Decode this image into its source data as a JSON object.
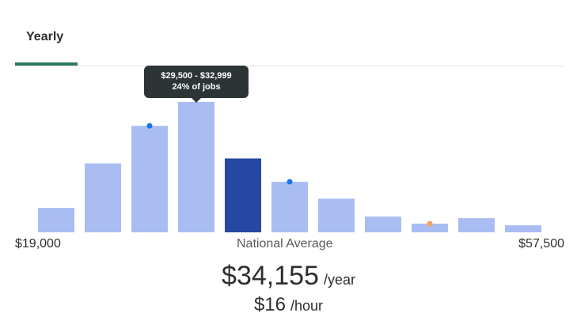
{
  "tabs": [
    {
      "label": "Yearly",
      "active": true
    }
  ],
  "tooltip": {
    "range": "$29,500 - $32,999",
    "share": "24% of jobs"
  },
  "axis": {
    "min_label": "$19,000",
    "mid_label": "National Average",
    "max_label": "$57,500"
  },
  "salary": {
    "yearly_amount": "$34,155",
    "yearly_unit": "/year",
    "hourly_amount": "$16",
    "hourly_unit": "/hour"
  },
  "colors": {
    "bar": "#a9bdf3",
    "bar_highlight": "#2648a3",
    "marker_blue": "#1a73e8",
    "marker_orange": "#f4a261",
    "tab_accent": "#2c7a62"
  },
  "chart_data": {
    "type": "bar",
    "x_range": [
      19000,
      57500
    ],
    "values": [
      4.5,
      12.7,
      19.6,
      24.0,
      13.6,
      9.3,
      6.2,
      2.9,
      1.6,
      2.6,
      1.3
    ],
    "y_unit": "% of jobs",
    "highlighted_index": 4,
    "markers": [
      {
        "bar_index": 2,
        "color": "blue"
      },
      {
        "bar_index": 5,
        "color": "blue"
      },
      {
        "bar_index": 8,
        "color": "orange"
      }
    ],
    "national_average": 34155
  }
}
